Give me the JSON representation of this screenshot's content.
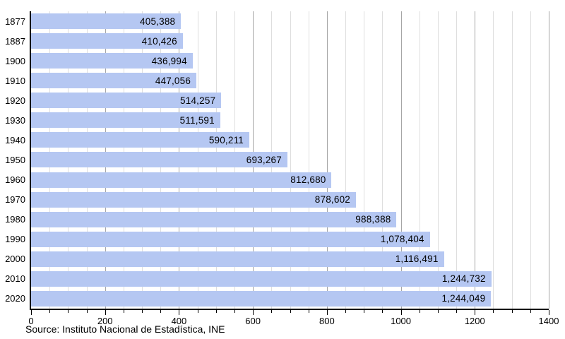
{
  "chart_data": {
    "type": "bar",
    "orientation": "horizontal",
    "title": "",
    "xlabel": "",
    "ylabel": "",
    "categories": [
      "1877",
      "1887",
      "1900",
      "1910",
      "1920",
      "1930",
      "1940",
      "1950",
      "1960",
      "1970",
      "1980",
      "1990",
      "2000",
      "2010",
      "2020"
    ],
    "values": [
      405388,
      410426,
      436994,
      447056,
      514257,
      511591,
      590211,
      693267,
      812680,
      878602,
      988388,
      1078404,
      1116491,
      1244732,
      1244049
    ],
    "value_labels": [
      "405,388",
      "410,426",
      "436,994",
      "447,056",
      "514,257",
      "511,591",
      "590,211",
      "693,267",
      "812,680",
      "878,602",
      "988,388",
      "1,078,404",
      "1,116,491",
      "1,244,732",
      "1,244,049"
    ],
    "xlim": [
      0,
      1400
    ],
    "x_axis_unit": "thousands",
    "x_minor_tick_step": 50,
    "x_major_tick_step": 200,
    "x_tick_labels": [
      "0",
      "200",
      "400",
      "600",
      "800",
      "1000",
      "1200",
      "1400"
    ],
    "grid": "vertical",
    "legend": "none",
    "bar_color": "#b5c7f2",
    "gridline_minor_color": "#dedede",
    "gridline_major_color": "#a6a6a6",
    "axis_color": "#000000",
    "text_color": "#000000"
  },
  "footer": {
    "source": "Source: Instituto Nacional de Estadística, INE"
  }
}
